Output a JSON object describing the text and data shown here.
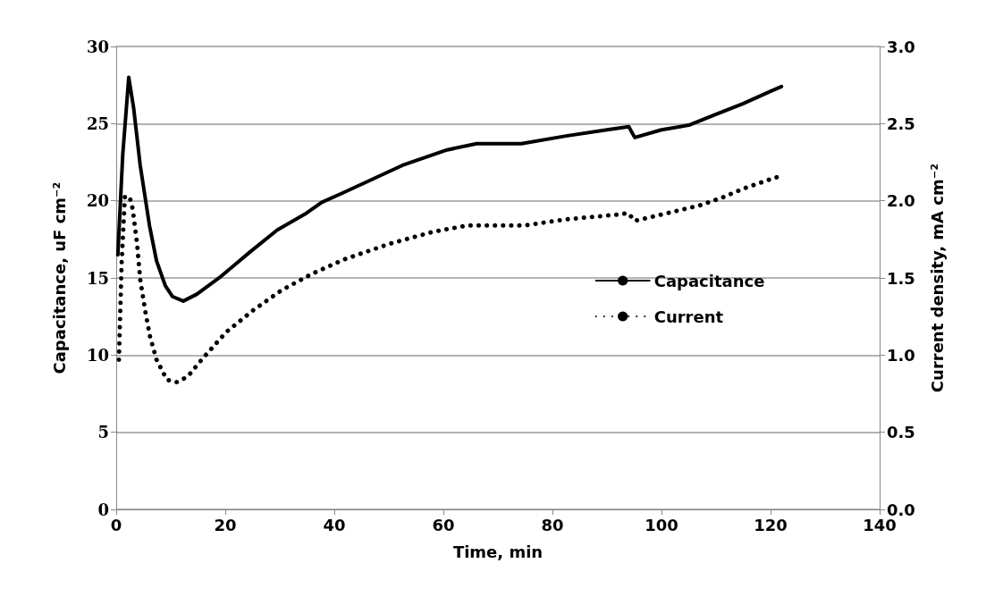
{
  "chart_data": {
    "type": "line",
    "xlabel": "Time, min",
    "ylabel": "Capacitance, uF cm⁻²",
    "y2label": "Current density, mA cm⁻²",
    "xlim": [
      0,
      140
    ],
    "xticks": [
      0,
      20,
      40,
      60,
      80,
      100,
      120,
      140
    ],
    "ylim": [
      0,
      30
    ],
    "yticks": [
      0,
      5,
      10,
      15,
      20,
      25,
      30
    ],
    "y2lim": [
      0,
      3
    ],
    "y2ticks": [
      {
        "value": 0,
        "label": "0.0"
      },
      {
        "value": 0.5,
        "label": "0.5"
      },
      {
        "value": 1,
        "label": "1.0"
      },
      {
        "value": 1.5,
        "label": "1.5"
      },
      {
        "value": 2,
        "label": "2.0"
      },
      {
        "value": 2.5,
        "label": "2.5"
      },
      {
        "value": 3,
        "label": "3.0"
      }
    ],
    "grid": "y",
    "legend": "center right",
    "marker": "none",
    "series": [
      {
        "name": "Capacitance",
        "color": "#000000",
        "line_style": "solid",
        "x": [
          0.3,
          1.2,
          2.3,
          3.2,
          4.4,
          6.1,
          7.4,
          9,
          10.3,
          12.3,
          14.8,
          19.2,
          24.6,
          29.5,
          34.9,
          37.7,
          41.5,
          52.5,
          60.7,
          66.1,
          74.3,
          82.5,
          90,
          94,
          95.1,
          100,
          105,
          110,
          115,
          120,
          122
        ],
        "values": [
          16.5,
          23,
          28,
          26,
          22.3,
          18.4,
          16.1,
          14.5,
          13.8,
          13.5,
          13.95,
          15.1,
          16.7,
          18.1,
          19.2,
          19.9,
          20.5,
          22.3,
          23.3,
          23.7,
          23.7,
          24.2,
          24.6,
          24.8,
          24.1,
          24.6,
          24.9,
          25.6,
          26.3,
          27.1,
          27.4
        ]
      },
      {
        "name": "Current",
        "color": "#000000",
        "line_style": "dotted",
        "axis": "y2",
        "x": [
          0.5,
          1,
          1.6,
          2.5,
          3,
          3.8,
          4.4,
          5.4,
          6.2,
          7.4,
          9.3,
          11.1,
          13.1,
          15.9,
          20.2,
          25.1,
          30.3,
          36.1,
          41.8,
          50,
          58.2,
          64.4,
          74.9,
          82.5,
          91.8,
          93.9,
          95.1,
          101.1,
          107,
          111.1,
          115.1,
          120.8,
          122
        ],
        "values": [
          0.97,
          1.6,
          2.03,
          2.02,
          1.95,
          1.73,
          1.49,
          1.27,
          1.12,
          0.97,
          0.84,
          0.825,
          0.86,
          0.98,
          1.15,
          1.29,
          1.42,
          1.53,
          1.62,
          1.72,
          1.8,
          1.84,
          1.84,
          1.88,
          1.91,
          1.92,
          1.87,
          1.92,
          1.97,
          2.02,
          2.08,
          2.15,
          2.16
        ]
      }
    ]
  }
}
